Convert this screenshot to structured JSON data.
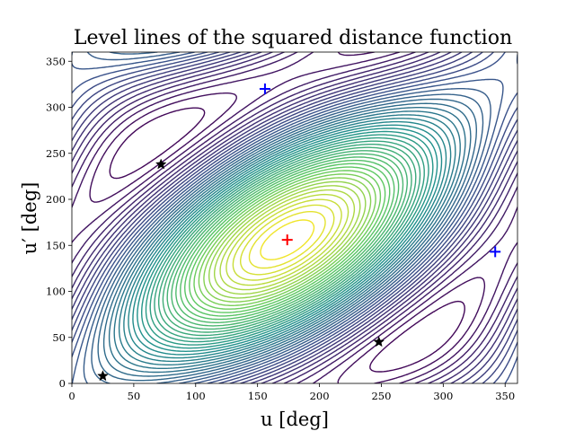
{
  "chart_data": {
    "type": "contour",
    "title": "Level lines of the squared distance function",
    "xlabel": "u [deg]",
    "ylabel": "u′ [deg]",
    "xlim": [
      0,
      360
    ],
    "ylim": [
      0,
      360
    ],
    "xticks": [
      0,
      50,
      100,
      150,
      200,
      250,
      300,
      350
    ],
    "yticks": [
      0,
      50,
      100,
      150,
      200,
      250,
      300,
      350
    ],
    "grid": false,
    "colormap": [
      "#440154",
      "#3b528b",
      "#21918c",
      "#5ec962",
      "#fde725"
    ],
    "center": [
      174,
      156
    ],
    "markers": [
      {
        "kind": "plus",
        "color": "#ff0000",
        "points": [
          [
            174,
            156
          ]
        ]
      },
      {
        "kind": "plus",
        "color": "#0000ff",
        "points": [
          [
            156,
            320
          ],
          [
            342,
            143
          ]
        ]
      },
      {
        "kind": "star",
        "color": "#000000",
        "points": [
          [
            72,
            238
          ],
          [
            25,
            8
          ],
          [
            248,
            45
          ]
        ]
      }
    ]
  }
}
